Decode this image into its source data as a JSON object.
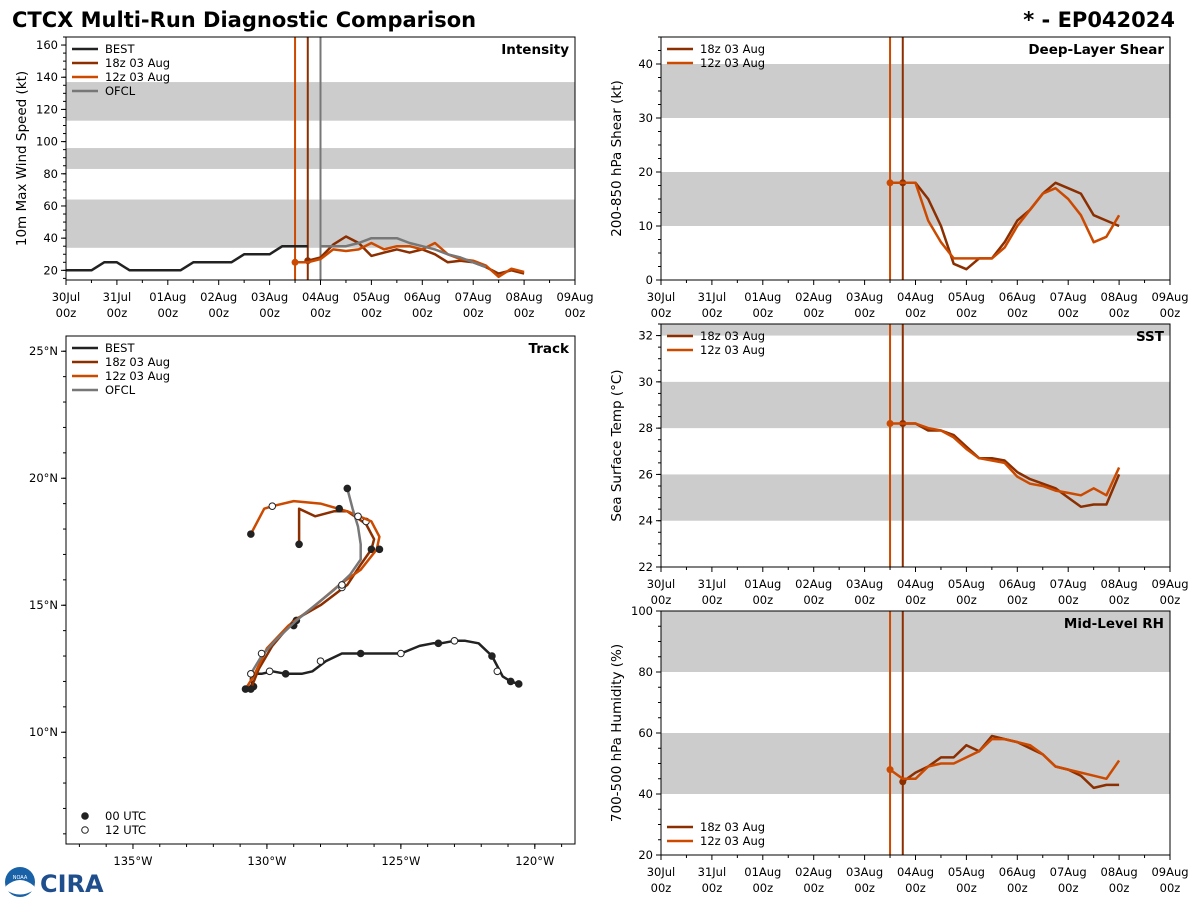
{
  "header": {
    "title": "CTCX Multi-Run Diagnostic Comparison",
    "storm_id": "* - EP042024"
  },
  "logo": {
    "text": "CIRA",
    "noaa_text": "NOAA"
  },
  "colors": {
    "best": "#222222",
    "run_18z": "#8b2e00",
    "run_12z": "#cc4a00",
    "ofcl": "#777777",
    "band": "#cccccc"
  },
  "time_axis": {
    "ticks": [
      0,
      1,
      2,
      3,
      4,
      5,
      6,
      7,
      8,
      9,
      10
    ],
    "labels": [
      "30Jul",
      "31Jul",
      "01Aug",
      "02Aug",
      "03Aug",
      "04Aug",
      "05Aug",
      "06Aug",
      "07Aug",
      "08Aug",
      "09Aug"
    ],
    "sublabel": "00z"
  },
  "chart_data": [
    {
      "id": "intensity",
      "type": "line",
      "title": "Intensity",
      "ylabel": "10m Max Wind Speed (kt)",
      "xlim": [
        0,
        10
      ],
      "ylim": [
        14,
        165
      ],
      "yticks": [
        20,
        40,
        60,
        80,
        100,
        120,
        140,
        160
      ],
      "bands": [
        [
          34,
          64
        ],
        [
          83,
          96
        ],
        [
          113,
          137
        ]
      ],
      "vlines": [
        {
          "x": 4.5,
          "series": "run_12z"
        },
        {
          "x": 4.75,
          "series": "run_18z"
        },
        {
          "x": 5.0,
          "series": "ofcl"
        }
      ],
      "legend": [
        "BEST",
        "18z 03 Aug",
        "12z 03 Aug",
        "OFCL"
      ],
      "series": [
        {
          "name": "BEST",
          "key": "best",
          "x": [
            0,
            0.25,
            0.5,
            0.75,
            1,
            1.25,
            1.5,
            1.75,
            2,
            2.25,
            2.5,
            2.75,
            3,
            3.25,
            3.5,
            3.75,
            4,
            4.25,
            4.5,
            4.75
          ],
          "y": [
            20,
            20,
            20,
            25,
            25,
            20,
            20,
            20,
            20,
            20,
            25,
            25,
            25,
            25,
            30,
            30,
            30,
            35,
            35,
            35
          ]
        },
        {
          "name": "18z 03 Aug",
          "key": "run_18z",
          "x": [
            4.75,
            5.0,
            5.25,
            5.5,
            5.75,
            6.0,
            6.25,
            6.5,
            6.75,
            7.0,
            7.25,
            7.5,
            7.75,
            8.0,
            8.25,
            8.5,
            8.75,
            9.0
          ],
          "y": [
            26,
            28,
            36,
            41,
            37,
            29,
            31,
            33,
            31,
            33,
            30,
            25,
            26,
            25,
            22,
            18,
            20,
            18
          ]
        },
        {
          "name": "12z 03 Aug",
          "key": "run_12z",
          "x": [
            4.5,
            4.75,
            5.0,
            5.25,
            5.5,
            5.75,
            6.0,
            6.25,
            6.5,
            6.75,
            7.0,
            7.25,
            7.5,
            7.75,
            8.0,
            8.25,
            8.5,
            8.75,
            9.0
          ],
          "y": [
            25,
            25,
            27,
            33,
            32,
            33,
            37,
            33,
            35,
            35,
            33,
            37,
            30,
            27,
            26,
            23,
            16,
            21,
            19
          ]
        },
        {
          "name": "OFCL",
          "key": "ofcl",
          "x": [
            5.0,
            5.25,
            5.5,
            5.75,
            6.0,
            6.25,
            6.5,
            6.75,
            7.0,
            7.25,
            7.5,
            7.75,
            8.0,
            8.25
          ],
          "y": [
            35,
            35,
            35,
            37,
            40,
            40,
            40,
            37,
            35,
            33,
            30,
            28,
            25,
            22
          ]
        }
      ]
    },
    {
      "id": "shear",
      "type": "line",
      "title": "Deep-Layer Shear",
      "ylabel": "200-850 hPa Shear (kt)",
      "xlim": [
        0,
        10
      ],
      "ylim": [
        0,
        45
      ],
      "yticks": [
        0,
        10,
        20,
        30,
        40
      ],
      "bands": [
        [
          10,
          20
        ],
        [
          30,
          40
        ]
      ],
      "vlines": [
        {
          "x": 4.5,
          "series": "run_12z"
        },
        {
          "x": 4.75,
          "series": "run_18z"
        }
      ],
      "legend": [
        "18z 03 Aug",
        "12z 03 Aug"
      ],
      "series": [
        {
          "name": "18z 03 Aug",
          "key": "run_18z",
          "x": [
            4.75,
            5.0,
            5.25,
            5.5,
            5.75,
            6.0,
            6.25,
            6.5,
            6.75,
            7.0,
            7.25,
            7.5,
            7.75,
            8.0,
            8.25,
            8.5,
            8.75,
            9.0
          ],
          "y": [
            18,
            18,
            15,
            10,
            3,
            2,
            4,
            4,
            7,
            11,
            13,
            16,
            18,
            17,
            16,
            12,
            11,
            10
          ]
        },
        {
          "name": "12z 03 Aug",
          "key": "run_12z",
          "x": [
            4.5,
            4.75,
            5.0,
            5.25,
            5.5,
            5.75,
            6.0,
            6.25,
            6.5,
            6.75,
            7.0,
            7.25,
            7.5,
            7.75,
            8.0,
            8.25,
            8.5,
            8.75,
            9.0
          ],
          "y": [
            18,
            18,
            18,
            11,
            7,
            4,
            4,
            4,
            4,
            6,
            10,
            13,
            16,
            17,
            15,
            12,
            7,
            8,
            12
          ]
        }
      ]
    },
    {
      "id": "sst",
      "type": "line",
      "title": "SST",
      "ylabel": "Sea Surface Temp (°C)",
      "xlim": [
        0,
        10
      ],
      "ylim": [
        22,
        32.5
      ],
      "yticks": [
        22,
        24,
        26,
        28,
        30,
        32
      ],
      "bands": [
        [
          24,
          26
        ],
        [
          28,
          30
        ],
        [
          32,
          32.5
        ]
      ],
      "vlines": [
        {
          "x": 4.5,
          "series": "run_12z"
        },
        {
          "x": 4.75,
          "series": "run_18z"
        }
      ],
      "legend": [
        "18z 03 Aug",
        "12z 03 Aug"
      ],
      "series": [
        {
          "name": "18z 03 Aug",
          "key": "run_18z",
          "x": [
            4.75,
            5.0,
            5.25,
            5.5,
            5.75,
            6.0,
            6.25,
            6.5,
            6.75,
            7.0,
            7.25,
            7.5,
            7.75,
            8.0,
            8.25,
            8.5,
            8.75,
            9.0
          ],
          "y": [
            28.2,
            28.2,
            27.9,
            27.9,
            27.7,
            27.2,
            26.7,
            26.7,
            26.6,
            26.1,
            25.8,
            25.6,
            25.4,
            25.0,
            24.6,
            24.7,
            24.7,
            26.0
          ]
        },
        {
          "name": "12z 03 Aug",
          "key": "run_12z",
          "x": [
            4.5,
            4.75,
            5.0,
            5.25,
            5.5,
            5.75,
            6.0,
            6.25,
            6.5,
            6.75,
            7.0,
            7.25,
            7.5,
            7.75,
            8.0,
            8.25,
            8.5,
            8.75,
            9.0
          ],
          "y": [
            28.2,
            28.2,
            28.2,
            28.0,
            27.9,
            27.6,
            27.1,
            26.7,
            26.6,
            26.5,
            25.9,
            25.6,
            25.5,
            25.3,
            25.2,
            25.1,
            25.4,
            25.1,
            26.3
          ]
        }
      ]
    },
    {
      "id": "rh",
      "type": "line",
      "title": "Mid-Level RH",
      "ylabel": "700-500 hPa Humidity (%)",
      "xlim": [
        0,
        10
      ],
      "ylim": [
        20,
        100
      ],
      "yticks": [
        20,
        40,
        60,
        80,
        100
      ],
      "bands": [
        [
          40,
          60
        ],
        [
          80,
          100
        ]
      ],
      "vlines": [
        {
          "x": 4.5,
          "series": "run_12z"
        },
        {
          "x": 4.75,
          "series": "run_18z"
        }
      ],
      "legend": [
        "18z 03 Aug",
        "12z 03 Aug"
      ],
      "series": [
        {
          "name": "18z 03 Aug",
          "key": "run_18z",
          "x": [
            4.75,
            5.0,
            5.25,
            5.5,
            5.75,
            6.0,
            6.25,
            6.5,
            6.75,
            7.0,
            7.25,
            7.5,
            7.75,
            8.0,
            8.25,
            8.5,
            8.75,
            9.0
          ],
          "y": [
            44,
            47,
            49,
            52,
            52,
            56,
            54,
            59,
            58,
            57,
            55,
            53,
            49,
            48,
            46,
            42,
            43,
            43
          ]
        },
        {
          "name": "12z 03 Aug",
          "key": "run_12z",
          "x": [
            4.5,
            4.75,
            5.0,
            5.25,
            5.5,
            5.75,
            6.0,
            6.25,
            6.5,
            6.75,
            7.0,
            7.25,
            7.5,
            7.75,
            8.0,
            8.25,
            8.5,
            8.75,
            9.0
          ],
          "y": [
            48,
            45,
            45,
            49,
            50,
            50,
            52,
            54,
            58,
            58,
            57,
            56,
            53,
            49,
            48,
            47,
            46,
            45,
            51
          ]
        }
      ]
    },
    {
      "id": "track",
      "type": "line",
      "title": "Track",
      "xlim": [
        -137.5,
        -118.5
      ],
      "ylim": [
        5.6,
        25.6
      ],
      "xticks": [
        -135,
        -130,
        -125,
        -120
      ],
      "xtick_labels": [
        "135°W",
        "130°W",
        "125°W",
        "120°W"
      ],
      "yticks": [
        10,
        15,
        20,
        25
      ],
      "ytick_labels": [
        "10°N",
        "15°N",
        "20°N",
        "25°N"
      ],
      "legend": [
        "BEST",
        "18z 03 Aug",
        "12z 03 Aug",
        "OFCL"
      ],
      "marker_legend": [
        "00 UTC",
        "12 UTC"
      ],
      "series": [
        {
          "name": "BEST",
          "key": "best",
          "lon": [
            -120.6,
            -120.9,
            -121.2,
            -121.6,
            -122.1,
            -122.6,
            -123.0,
            -123.5,
            -123.8,
            -124.3,
            -125.0,
            -125.5,
            -126.0,
            -126.5,
            -127.2,
            -127.8,
            -128.3,
            -128.7,
            -129.3,
            -129.8,
            -130.2,
            -130.4,
            -130.6,
            -130.5
          ],
          "lat": [
            11.9,
            12.0,
            12.2,
            13.0,
            13.5,
            13.6,
            13.6,
            13.5,
            13.5,
            13.4,
            13.1,
            13.1,
            13.1,
            13.1,
            13.1,
            12.8,
            12.4,
            12.3,
            12.3,
            12.4,
            12.3,
            12.3,
            12.1,
            11.8
          ],
          "markers": [
            {
              "lon": -120.6,
              "lat": 11.9,
              "utc": "00"
            },
            {
              "lon": -120.9,
              "lat": 12.0,
              "utc": "00"
            },
            {
              "lon": -121.4,
              "lat": 12.4,
              "utc": "12"
            },
            {
              "lon": -121.6,
              "lat": 13.0,
              "utc": "00"
            },
            {
              "lon": -123.0,
              "lat": 13.6,
              "utc": "12"
            },
            {
              "lon": -123.6,
              "lat": 13.5,
              "utc": "00"
            },
            {
              "lon": -125.0,
              "lat": 13.1,
              "utc": "12"
            },
            {
              "lon": -126.5,
              "lat": 13.1,
              "utc": "00"
            },
            {
              "lon": -128.0,
              "lat": 12.8,
              "utc": "12"
            },
            {
              "lon": -129.3,
              "lat": 12.3,
              "utc": "00"
            },
            {
              "lon": -129.9,
              "lat": 12.4,
              "utc": "12"
            },
            {
              "lon": -130.5,
              "lat": 11.8,
              "utc": "00"
            }
          ]
        },
        {
          "name": "18z 03 Aug",
          "key": "run_18z",
          "lon": [
            -130.6,
            -130.3,
            -129.8,
            -129.0,
            -128.0,
            -127.0,
            -126.5,
            -126.1,
            -126.0,
            -126.3,
            -127.0,
            -127.5,
            -128.2,
            -128.8,
            -128.8
          ],
          "lat": [
            11.7,
            12.5,
            13.4,
            14.4,
            15.0,
            15.8,
            16.6,
            17.2,
            17.6,
            18.2,
            18.7,
            18.7,
            18.5,
            18.8,
            17.4
          ],
          "markers": [
            {
              "lon": -130.6,
              "lat": 11.7,
              "utc": "00"
            },
            {
              "lon": -128.9,
              "lat": 14.4,
              "utc": "00"
            },
            {
              "lon": -126.1,
              "lat": 17.2,
              "utc": "00"
            },
            {
              "lon": -126.3,
              "lat": 18.3,
              "utc": "12"
            },
            {
              "lon": -128.8,
              "lat": 17.4,
              "utc": "00"
            }
          ]
        },
        {
          "name": "12z 03 Aug",
          "key": "run_12z",
          "lon": [
            -130.8,
            -130.5,
            -130.0,
            -129.2,
            -128.3,
            -127.3,
            -126.5,
            -125.9,
            -125.8,
            -126.1,
            -127.0,
            -128.0,
            -129.0,
            -129.8,
            -130.1,
            -130.6
          ],
          "lat": [
            11.7,
            12.2,
            13.3,
            14.2,
            14.9,
            15.8,
            16.4,
            17.2,
            17.7,
            18.3,
            18.7,
            19.0,
            19.1,
            18.9,
            18.8,
            17.8
          ],
          "markers": [
            {
              "lon": -130.8,
              "lat": 11.7,
              "utc": "00"
            },
            {
              "lon": -129.0,
              "lat": 14.2,
              "utc": "00"
            },
            {
              "lon": -127.2,
              "lat": 15.7,
              "utc": "12"
            },
            {
              "lon": -125.8,
              "lat": 17.2,
              "utc": "00"
            },
            {
              "lon": -127.3,
              "lat": 18.8,
              "utc": "00"
            },
            {
              "lon": -129.8,
              "lat": 18.9,
              "utc": "12"
            },
            {
              "lon": -130.6,
              "lat": 17.8,
              "utc": "00"
            }
          ]
        },
        {
          "name": "OFCL",
          "key": "ofcl",
          "lon": [
            -130.6,
            -130.2,
            -129.7,
            -128.9,
            -128.2,
            -127.5,
            -126.9,
            -126.5,
            -126.5,
            -126.6,
            -126.8,
            -127.0
          ],
          "lat": [
            12.3,
            13.0,
            13.6,
            14.4,
            15.0,
            15.6,
            16.2,
            16.8,
            17.4,
            18.1,
            18.8,
            19.6
          ],
          "markers": [
            {
              "lon": -130.6,
              "lat": 12.3,
              "utc": "12"
            },
            {
              "lon": -130.2,
              "lat": 13.1,
              "utc": "12"
            },
            {
              "lon": -127.2,
              "lat": 15.8,
              "utc": "12"
            },
            {
              "lon": -126.6,
              "lat": 18.5,
              "utc": "12"
            },
            {
              "lon": -127.0,
              "lat": 19.6,
              "utc": "00"
            }
          ]
        }
      ]
    }
  ]
}
